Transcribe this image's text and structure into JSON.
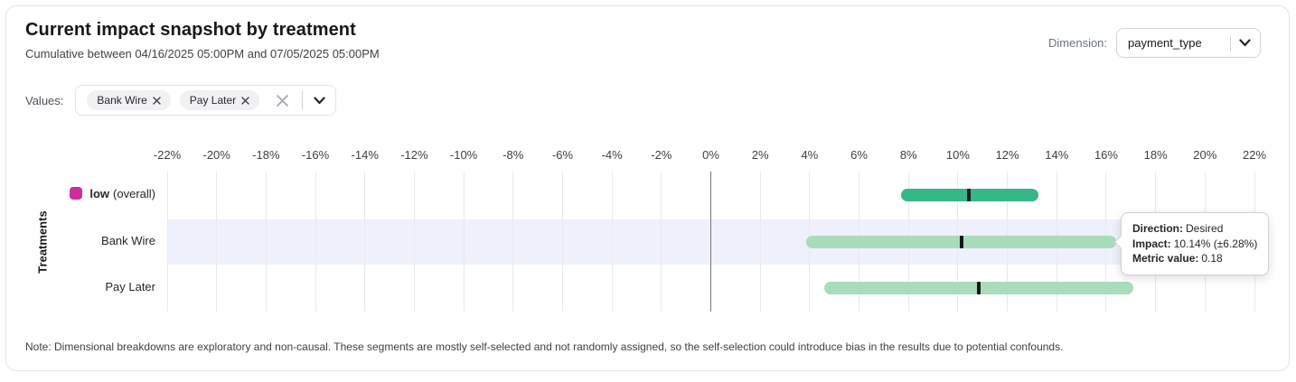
{
  "header": {
    "title": "Current impact snapshot by treatment",
    "subtitle": "Cumulative between 04/16/2025 05:00PM and 07/05/2025 05:00PM",
    "dimension_label": "Dimension:",
    "dimension_value": "payment_type"
  },
  "values_filter": {
    "label": "Values:",
    "chips": [
      {
        "label": "Bank Wire"
      },
      {
        "label": "Pay Later"
      }
    ],
    "icons": {
      "chip_remove": "x-icon",
      "clear_all": "x-icon",
      "expand": "chevron-down-icon",
      "dimension_expand": "chevron-down-icon"
    }
  },
  "chart_data": {
    "type": "range_bar",
    "ylabel": "Treatments",
    "xlim": [
      -22,
      22
    ],
    "grid": true,
    "highlight_color": "#eef0fb",
    "zero_line_color": "#75757e",
    "marker_color": "#17181c",
    "ticks": [
      {
        "value": -22,
        "label": "-22%"
      },
      {
        "value": -20,
        "label": "-20%"
      },
      {
        "value": -18,
        "label": "-18%"
      },
      {
        "value": -16,
        "label": "-16%"
      },
      {
        "value": -14,
        "label": "-14%"
      },
      {
        "value": -12,
        "label": "-12%"
      },
      {
        "value": -10,
        "label": "-10%"
      },
      {
        "value": -8,
        "label": "-8%"
      },
      {
        "value": -6,
        "label": "-6%"
      },
      {
        "value": -4,
        "label": "-4%"
      },
      {
        "value": -2,
        "label": "-2%"
      },
      {
        "value": 0,
        "label": "0%"
      },
      {
        "value": 2,
        "label": "2%"
      },
      {
        "value": 4,
        "label": "4%"
      },
      {
        "value": 6,
        "label": "6%"
      },
      {
        "value": 8,
        "label": "8%"
      },
      {
        "value": 10,
        "label": "10%"
      },
      {
        "value": 12,
        "label": "12%"
      },
      {
        "value": 14,
        "label": "14%"
      },
      {
        "value": 16,
        "label": "16%"
      },
      {
        "value": 18,
        "label": "18%"
      },
      {
        "value": 20,
        "label": "20%"
      },
      {
        "value": 22,
        "label": "22%"
      }
    ],
    "rows": [
      {
        "label": "low",
        "label_suffix": "(overall)",
        "legend_color": "#cf2e9a",
        "bar_color": "#35b786",
        "impact_pct": 10.45,
        "ci_low_pct": 7.7,
        "ci_high_pct": 13.25,
        "highlighted": false
      },
      {
        "label": "Bank Wire",
        "bar_color": "#a9dcba",
        "impact_pct": 10.14,
        "ci_low_pct": 3.86,
        "ci_high_pct": 16.42,
        "highlighted": true
      },
      {
        "label": "Pay Later",
        "bar_color": "#a9dcba",
        "impact_pct": 10.85,
        "ci_low_pct": 4.6,
        "ci_high_pct": 17.1,
        "highlighted": false
      }
    ]
  },
  "tooltip": {
    "direction_label": "Direction:",
    "direction_value": "Desired",
    "impact_label": "Impact:",
    "impact_value": "10.14% (±6.28%)",
    "metric_label": "Metric value:",
    "metric_value": "0.18"
  },
  "note": "Note: Dimensional breakdowns are exploratory and non-causal. These segments are mostly self-selected and not randomly assigned, so the self-selection could introduce bias in the results due to potential confounds."
}
